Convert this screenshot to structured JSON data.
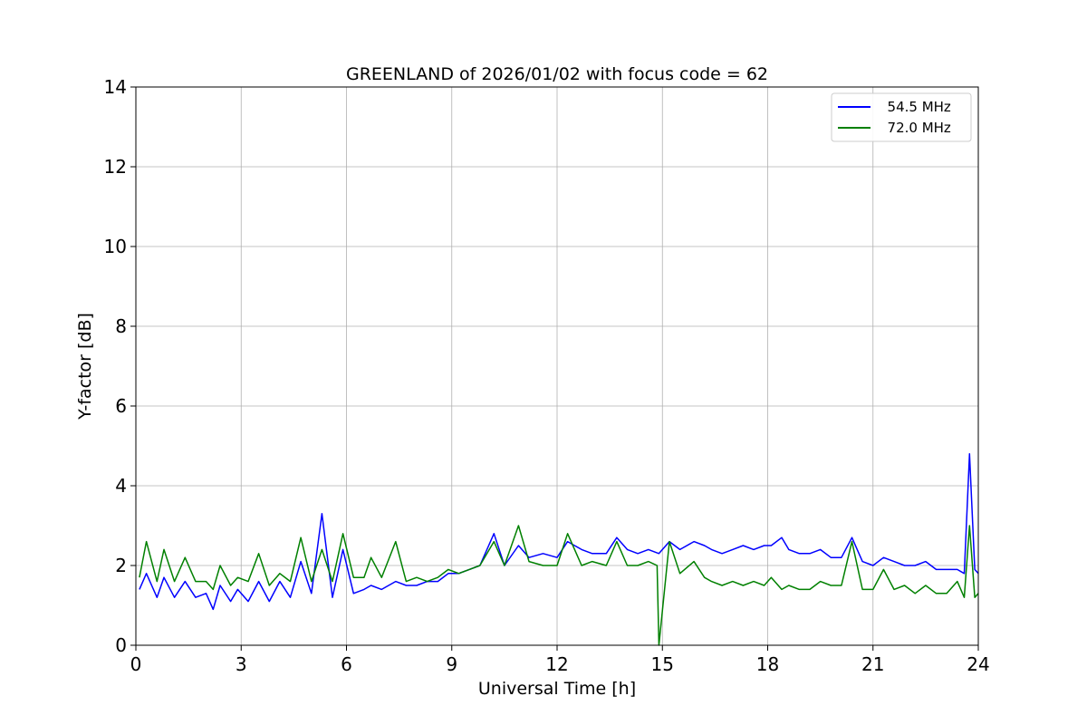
{
  "chart_data": {
    "type": "line",
    "title": "GREENLAND of 2026/01/02 with focus code = 62",
    "xlabel": "Universal Time [h]",
    "ylabel": "Y-factor [dB]",
    "xlim": [
      0,
      24
    ],
    "ylim": [
      0,
      14
    ],
    "xticks": [
      0,
      3,
      6,
      9,
      12,
      15,
      18,
      21,
      24
    ],
    "yticks": [
      0,
      2,
      4,
      6,
      8,
      10,
      12,
      14
    ],
    "grid": true,
    "legend_position": "top-right",
    "series": [
      {
        "name": "  54.5 MHz",
        "color": "#0000ff",
        "x": [
          0.1,
          0.3,
          0.6,
          0.8,
          1.1,
          1.4,
          1.7,
          2.0,
          2.2,
          2.4,
          2.7,
          2.9,
          3.2,
          3.5,
          3.8,
          4.1,
          4.4,
          4.7,
          5.0,
          5.3,
          5.6,
          5.9,
          6.2,
          6.5,
          6.7,
          7.0,
          7.4,
          7.7,
          8.0,
          8.3,
          8.6,
          8.9,
          9.2,
          9.5,
          9.8,
          10.2,
          10.5,
          10.9,
          11.2,
          11.6,
          12.0,
          12.3,
          12.7,
          13.0,
          13.4,
          13.7,
          14.0,
          14.3,
          14.6,
          14.9,
          15.2,
          15.5,
          15.9,
          16.2,
          16.4,
          16.7,
          17.0,
          17.3,
          17.6,
          17.9,
          18.1,
          18.4,
          18.6,
          18.9,
          19.2,
          19.5,
          19.8,
          20.1,
          20.4,
          20.7,
          21.0,
          21.3,
          21.6,
          21.9,
          22.2,
          22.5,
          22.8,
          23.1,
          23.4,
          23.6,
          23.75,
          23.9,
          24.0
        ],
        "y": [
          1.4,
          1.8,
          1.2,
          1.7,
          1.2,
          1.6,
          1.2,
          1.3,
          0.9,
          1.5,
          1.1,
          1.4,
          1.1,
          1.6,
          1.1,
          1.6,
          1.2,
          2.1,
          1.3,
          3.3,
          1.2,
          2.4,
          1.3,
          1.4,
          1.5,
          1.4,
          1.6,
          1.5,
          1.5,
          1.6,
          1.6,
          1.8,
          1.8,
          1.9,
          2.0,
          2.8,
          2.0,
          2.5,
          2.2,
          2.3,
          2.2,
          2.6,
          2.4,
          2.3,
          2.3,
          2.7,
          2.4,
          2.3,
          2.4,
          2.3,
          2.6,
          2.4,
          2.6,
          2.5,
          2.4,
          2.3,
          2.4,
          2.5,
          2.4,
          2.5,
          2.5,
          2.7,
          2.4,
          2.3,
          2.3,
          2.4,
          2.2,
          2.2,
          2.7,
          2.1,
          2.0,
          2.2,
          2.1,
          2.0,
          2.0,
          2.1,
          1.9,
          1.9,
          1.9,
          1.8,
          4.8,
          1.9,
          1.8
        ]
      },
      {
        "name": "  72.0 MHz",
        "color": "#008000",
        "x": [
          0.1,
          0.3,
          0.6,
          0.8,
          1.1,
          1.4,
          1.7,
          2.0,
          2.2,
          2.4,
          2.7,
          2.9,
          3.2,
          3.5,
          3.8,
          4.1,
          4.4,
          4.7,
          5.0,
          5.3,
          5.6,
          5.9,
          6.2,
          6.5,
          6.7,
          7.0,
          7.4,
          7.7,
          8.0,
          8.3,
          8.6,
          8.9,
          9.2,
          9.5,
          9.8,
          10.2,
          10.5,
          10.9,
          11.2,
          11.6,
          12.0,
          12.3,
          12.7,
          13.0,
          13.4,
          13.7,
          14.0,
          14.3,
          14.6,
          14.85,
          14.9,
          15.2,
          15.5,
          15.9,
          16.2,
          16.4,
          16.7,
          17.0,
          17.3,
          17.6,
          17.9,
          18.1,
          18.4,
          18.6,
          18.9,
          19.2,
          19.5,
          19.8,
          20.1,
          20.4,
          20.7,
          21.0,
          21.3,
          21.6,
          21.9,
          22.2,
          22.5,
          22.8,
          23.1,
          23.4,
          23.6,
          23.75,
          23.9,
          24.0
        ],
        "y": [
          1.7,
          2.6,
          1.6,
          2.4,
          1.6,
          2.2,
          1.6,
          1.6,
          1.4,
          2.0,
          1.5,
          1.7,
          1.6,
          2.3,
          1.5,
          1.8,
          1.6,
          2.7,
          1.6,
          2.4,
          1.6,
          2.8,
          1.7,
          1.7,
          2.2,
          1.7,
          2.6,
          1.6,
          1.7,
          1.6,
          1.7,
          1.9,
          1.8,
          1.9,
          2.0,
          2.6,
          2.0,
          3.0,
          2.1,
          2.0,
          2.0,
          2.8,
          2.0,
          2.1,
          2.0,
          2.6,
          2.0,
          2.0,
          2.1,
          2.0,
          0.0,
          2.6,
          1.8,
          2.1,
          1.7,
          1.6,
          1.5,
          1.6,
          1.5,
          1.6,
          1.5,
          1.7,
          1.4,
          1.5,
          1.4,
          1.4,
          1.6,
          1.5,
          1.5,
          2.6,
          1.4,
          1.4,
          1.9,
          1.4,
          1.5,
          1.3,
          1.5,
          1.3,
          1.3,
          1.6,
          1.2,
          3.0,
          1.2,
          1.3
        ]
      }
    ]
  }
}
